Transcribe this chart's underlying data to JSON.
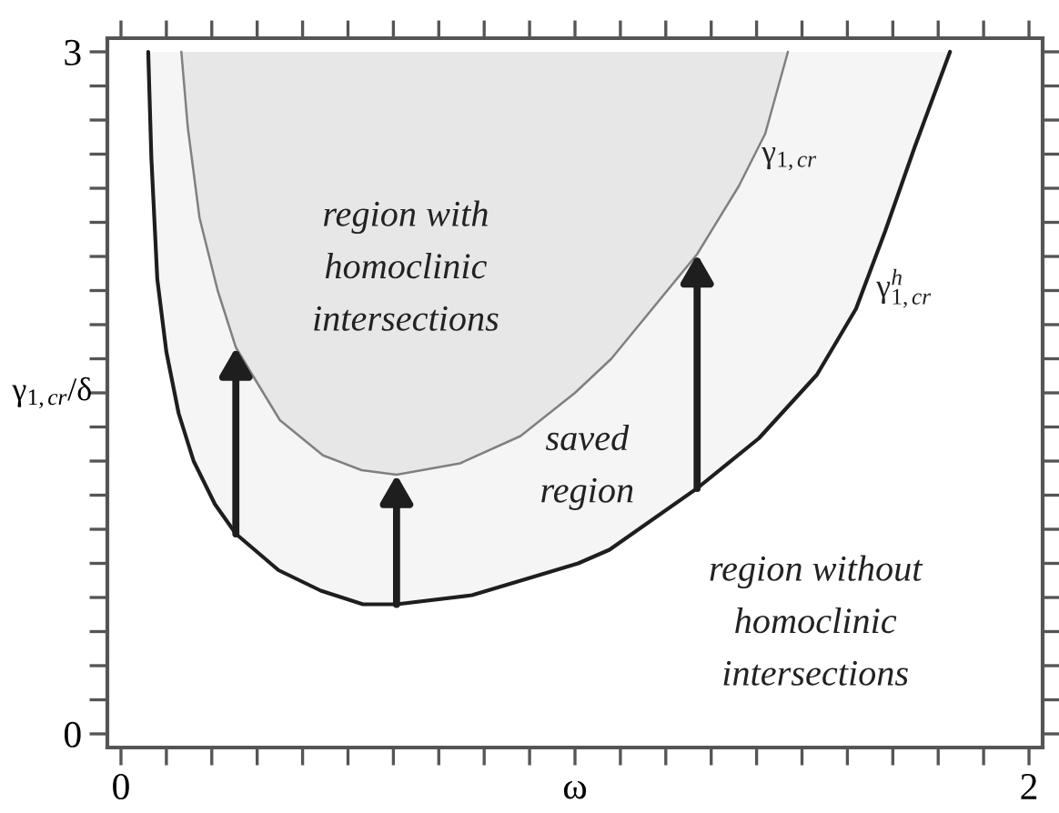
{
  "chart_data": {
    "type": "area",
    "xlabel": "ω",
    "ylabel": "γ$_{1,cr}$/δ",
    "xlim": [
      -0.03,
      2.03
    ],
    "ylim": [
      -0.06,
      3.06
    ],
    "xticks": [
      0,
      {
        "value": 0.1,
        "label": null
      },
      {
        "value": 0.2,
        "label": null
      },
      {
        "value": 0.3,
        "label": null
      },
      {
        "value": 0.4,
        "label": null
      },
      {
        "value": 0.5,
        "label": null
      },
      {
        "value": 0.6,
        "label": null
      },
      {
        "value": 0.7,
        "label": null
      },
      {
        "value": 0.8,
        "label": null
      },
      {
        "value": 0.9,
        "label": null
      },
      {
        "value": 1,
        "label": null
      },
      {
        "value": 1.1,
        "label": null
      },
      {
        "value": 1.2,
        "label": null
      },
      {
        "value": 1.3,
        "label": null
      },
      {
        "value": 1.4,
        "label": null
      },
      {
        "value": 1.5,
        "label": null
      },
      {
        "value": 1.6,
        "label": null
      },
      {
        "value": 1.7,
        "label": null
      },
      {
        "value": 1.8,
        "label": null
      },
      {
        "value": 1.9,
        "label": null
      },
      2
    ],
    "yticks": [
      0,
      {
        "value": 0.15,
        "label": null
      },
      {
        "value": 0.3,
        "label": null
      },
      {
        "value": 0.45,
        "label": null
      },
      {
        "value": 0.6,
        "label": null
      },
      {
        "value": 0.75,
        "label": null
      },
      {
        "value": 0.9,
        "label": null
      },
      {
        "value": 1.05,
        "label": null
      },
      {
        "value": 1.2,
        "label": null
      },
      {
        "value": 1.35,
        "label": null
      },
      {
        "value": 1.5,
        "label": null
      },
      {
        "value": 1.65,
        "label": null
      },
      {
        "value": 1.8,
        "label": null
      },
      {
        "value": 1.95,
        "label": null
      },
      {
        "value": 2.1,
        "label": null
      },
      {
        "value": 2.25,
        "label": null
      },
      {
        "value": 2.4,
        "label": null
      },
      {
        "value": 2.55,
        "label": null
      },
      {
        "value": 2.7,
        "label": null
      },
      {
        "value": 2.85,
        "label": null
      },
      3
    ],
    "series": [
      {
        "name": "γ$^{h}$$_{1,cr}$",
        "color": "#1e1e1e",
        "x": [
          0.06,
          0.067,
          0.08,
          0.1,
          0.127,
          0.16,
          0.207,
          0.253,
          0.347,
          0.44,
          0.533,
          0.607,
          0.773,
          0.907,
          1.007,
          1.076,
          1.269,
          1.405,
          1.533,
          1.619,
          1.683,
          1.748,
          1.826
        ],
        "values": [
          3.0,
          2.53,
          2.0,
          1.68,
          1.41,
          1.2,
          1.01,
          0.88,
          0.72,
          0.63,
          0.57,
          0.57,
          0.61,
          0.69,
          0.75,
          0.81,
          1.08,
          1.3,
          1.58,
          1.87,
          2.21,
          2.58,
          3.0
        ]
      },
      {
        "name": "γ$_{1,cr}$",
        "color": "#808080",
        "x": [
          0.133,
          0.147,
          0.173,
          0.213,
          0.253,
          0.28,
          0.35,
          0.445,
          0.53,
          0.607,
          0.747,
          0.88,
          1.0,
          1.08,
          1.269,
          1.361,
          1.419,
          1.469
        ],
        "values": [
          3.0,
          2.67,
          2.27,
          1.95,
          1.7,
          1.61,
          1.38,
          1.225,
          1.16,
          1.14,
          1.19,
          1.31,
          1.5,
          1.65,
          2.11,
          2.41,
          2.64,
          3.0
        ]
      }
    ],
    "annotations": [
      "region with\nhomoclinic\nintersections",
      "saved\nregion",
      "region without\nhomoclinic\nintersections"
    ]
  }
}
